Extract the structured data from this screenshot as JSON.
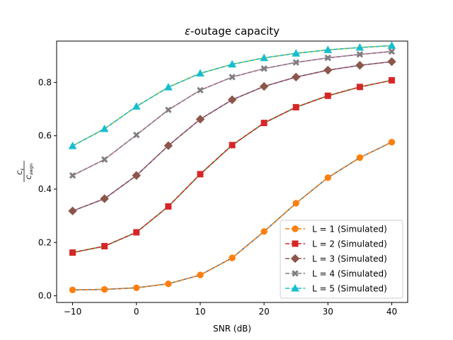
{
  "chart_data": {
    "type": "line",
    "title_prefix": "ε",
    "title_rest": "-outage capacity",
    "xlabel": "SNR (dB)",
    "ylabel": {
      "numerator": "C",
      "numerator_sub": "ε",
      "denominator": "C",
      "denominator_sub": "awgn"
    },
    "xlim": [
      -12.5,
      42.5
    ],
    "ylim": [
      -0.025,
      0.955
    ],
    "xticks": [
      -10,
      0,
      10,
      20,
      30,
      40
    ],
    "xtick_labels": [
      "−10",
      "0",
      "10",
      "20",
      "30",
      "40"
    ],
    "yticks": [
      0.0,
      0.2,
      0.4,
      0.6,
      0.8
    ],
    "ytick_labels": [
      "0.0",
      "0.2",
      "0.4",
      "0.6",
      "0.8"
    ],
    "grid": false,
    "legend_position": "lower-right",
    "x": [
      -10,
      -5,
      0,
      5,
      10,
      15,
      20,
      25,
      30,
      35,
      40
    ],
    "series": [
      {
        "name": "L = 1 (Simulated)",
        "color": "#ff7f0e",
        "theory_color": "#1f77b4",
        "marker": "circle",
        "values": [
          0.022,
          0.024,
          0.03,
          0.045,
          0.078,
          0.142,
          0.241,
          0.347,
          0.443,
          0.518,
          0.576
        ]
      },
      {
        "name": "L = 2 (Simulated)",
        "color": "#d62728",
        "theory_color": "#2ca02c",
        "marker": "square",
        "values": [
          0.162,
          0.186,
          0.238,
          0.335,
          0.456,
          0.565,
          0.648,
          0.707,
          0.75,
          0.783,
          0.808
        ]
      },
      {
        "name": "L = 3 (Simulated)",
        "color": "#8c564b",
        "theory_color": "#9467bd",
        "marker": "diamond",
        "values": [
          0.318,
          0.364,
          0.451,
          0.563,
          0.662,
          0.735,
          0.785,
          0.82,
          0.846,
          0.864,
          0.878
        ]
      },
      {
        "name": "L = 4 (Simulated)",
        "color": "#7f7f7f",
        "theory_color": "#e377c2",
        "marker": "x",
        "values": [
          0.451,
          0.511,
          0.603,
          0.697,
          0.771,
          0.82,
          0.852,
          0.875,
          0.892,
          0.905,
          0.916
        ]
      },
      {
        "name": "L = 5 (Simulated)",
        "color": "#17becf",
        "theory_color": "#bcbd22",
        "marker": "triangle",
        "values": [
          0.562,
          0.626,
          0.71,
          0.782,
          0.834,
          0.868,
          0.892,
          0.909,
          0.922,
          0.931,
          0.938
        ]
      }
    ]
  }
}
